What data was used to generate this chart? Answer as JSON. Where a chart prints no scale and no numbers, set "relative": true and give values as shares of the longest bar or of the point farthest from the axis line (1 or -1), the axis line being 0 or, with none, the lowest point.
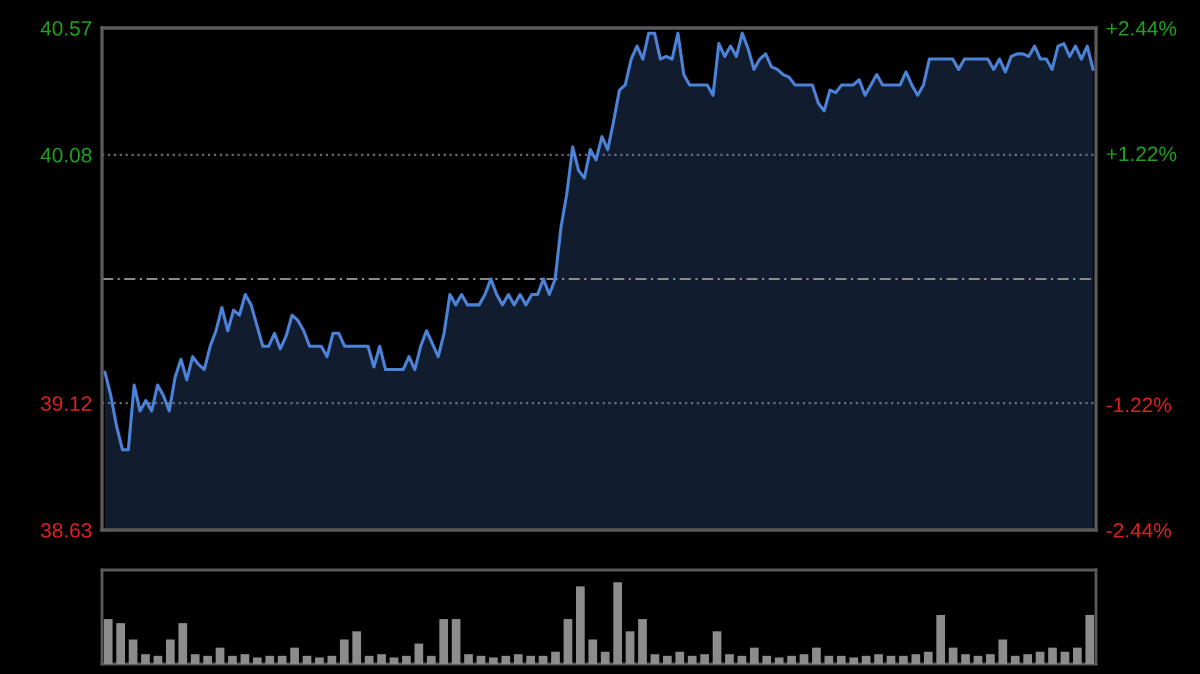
{
  "chart_data": [
    {
      "type": "area",
      "categories": [
        null,
        null,
        null,
        null,
        null,
        null,
        null,
        null,
        null,
        null,
        null,
        null,
        null,
        null,
        null,
        null,
        null,
        null,
        null,
        null,
        null,
        null,
        null,
        null,
        null,
        null,
        null,
        null,
        null,
        null,
        null,
        null,
        null,
        null,
        null,
        null,
        null,
        null,
        null,
        null,
        null,
        null,
        null,
        null,
        null,
        null,
        null,
        null,
        null,
        null,
        null,
        null,
        null,
        null,
        null,
        null,
        null,
        null,
        null,
        null,
        null,
        null,
        null,
        null,
        null,
        null,
        null,
        null,
        null,
        null,
        null,
        null,
        null,
        null,
        null,
        null,
        null,
        null,
        null,
        null,
        null,
        null,
        null,
        null,
        null,
        null,
        null,
        null,
        null,
        null,
        null,
        null,
        null,
        null,
        null,
        null,
        null,
        null,
        null,
        null,
        null,
        null,
        null,
        null,
        null,
        null,
        null,
        null,
        null,
        null,
        null,
        null,
        null,
        null,
        null,
        null,
        null,
        null,
        null,
        null,
        null,
        null,
        null,
        null,
        null,
        null,
        null,
        null,
        null,
        null,
        null,
        null,
        null,
        null,
        null,
        null,
        null,
        null,
        null,
        null,
        null,
        null,
        null,
        null,
        null,
        null,
        null,
        null,
        null,
        null,
        null,
        null,
        null,
        null,
        null,
        null,
        null,
        null,
        null,
        null,
        null,
        null,
        null,
        null,
        null,
        null,
        null,
        null,
        null,
        null
      ],
      "series": [
        {
          "color": "#4c82d8",
          "values": [
            39.24,
            39.15,
            39.03,
            38.94,
            38.94,
            39.19,
            39.09,
            39.13,
            39.09,
            39.19,
            39.15,
            39.09,
            39.22,
            39.29,
            39.21,
            39.3,
            39.27,
            39.25,
            39.34,
            39.4,
            39.49,
            39.4,
            39.48,
            39.46,
            39.54,
            39.5,
            39.42,
            39.34,
            39.34,
            39.39,
            39.33,
            39.38,
            39.46,
            39.44,
            39.4,
            39.34,
            39.34,
            39.34,
            39.3,
            39.39,
            39.39,
            39.34,
            39.34,
            39.34,
            39.34,
            39.34,
            39.26,
            39.34,
            39.25,
            39.25,
            39.25,
            39.25,
            39.3,
            39.25,
            39.34,
            39.4,
            39.35,
            39.3,
            39.39,
            39.54,
            39.5,
            39.54,
            39.5,
            39.5,
            39.5,
            39.54,
            39.6,
            39.54,
            39.5,
            39.54,
            39.5,
            39.54,
            39.5,
            39.54,
            39.54,
            39.6,
            39.54,
            39.6,
            39.8,
            39.93,
            40.11,
            40.02,
            39.99,
            40.1,
            40.06,
            40.15,
            40.1,
            40.21,
            40.33,
            40.35,
            40.45,
            40.5,
            40.45,
            40.55,
            40.55,
            40.45,
            40.46,
            40.45,
            40.55,
            40.39,
            40.35,
            40.35,
            40.35,
            40.35,
            40.31,
            40.51,
            40.46,
            40.5,
            40.46,
            40.55,
            40.49,
            40.41,
            40.45,
            40.47,
            40.42,
            40.41,
            40.39,
            40.38,
            40.35,
            40.35,
            40.35,
            40.35,
            40.28,
            40.25,
            40.33,
            40.32,
            40.35,
            40.35,
            40.35,
            40.37,
            40.31,
            40.35,
            40.39,
            40.35,
            40.35,
            40.35,
            40.35,
            40.4,
            40.35,
            40.31,
            40.35,
            40.45,
            40.45,
            40.45,
            40.45,
            40.45,
            40.41,
            40.45,
            40.45,
            40.45,
            40.45,
            40.45,
            40.41,
            40.45,
            40.4,
            40.46,
            40.47,
            40.47,
            40.46,
            40.5,
            40.45,
            40.45,
            40.41,
            40.5,
            40.51,
            40.46,
            40.5,
            40.45,
            40.5,
            40.41
          ]
        }
      ],
      "ylim": [
        38.63,
        40.57
      ],
      "yticks": [
        40.57,
        40.08,
        39.12,
        38.63
      ],
      "y2lim": [
        -2.44,
        2.44
      ],
      "y2ticks": [
        {
          "value": 2.44,
          "label": "+2.44%"
        },
        {
          "value": 1.22,
          "label": "+1.22%"
        },
        {
          "value": -1.22,
          "label": "-1.22%"
        },
        {
          "value": -2.44,
          "label": "-2.44%"
        }
      ],
      "ref_lines": [
        {
          "axis": "y",
          "value": 39.6,
          "line_style": "dashed",
          "color": "#8a8a8a"
        }
      ],
      "grid": "y",
      "tick_labels": "y"
    },
    {
      "type": "bar",
      "categories": [
        null,
        null,
        null,
        null,
        null,
        null,
        null,
        null,
        null,
        null,
        null,
        null,
        null,
        null,
        null,
        null,
        null,
        null,
        null,
        null,
        null,
        null,
        null,
        null,
        null,
        null,
        null,
        null,
        null,
        null,
        null,
        null,
        null,
        null,
        null,
        null,
        null,
        null,
        null,
        null,
        null,
        null,
        null,
        null,
        null,
        null,
        null,
        null,
        null,
        null,
        null,
        null,
        null,
        null,
        null,
        null,
        null,
        null,
        null,
        null,
        null,
        null,
        null,
        null,
        null,
        null,
        null,
        null,
        null,
        null,
        null,
        null,
        null,
        null,
        null,
        null,
        null,
        null,
        null,
        null
      ],
      "values": [
        0.55,
        0.5,
        0.3,
        0.12,
        0.1,
        0.3,
        0.5,
        0.12,
        0.1,
        0.2,
        0.1,
        0.12,
        0.08,
        0.1,
        0.1,
        0.2,
        0.1,
        0.08,
        0.1,
        0.3,
        0.4,
        0.1,
        0.12,
        0.08,
        0.1,
        0.25,
        0.1,
        0.55,
        0.55,
        0.12,
        0.1,
        0.08,
        0.1,
        0.12,
        0.1,
        0.1,
        0.15,
        0.55,
        0.95,
        0.3,
        0.15,
        1,
        0.4,
        0.55,
        0.12,
        0.1,
        0.15,
        0.1,
        0.12,
        0.4,
        0.12,
        0.1,
        0.2,
        0.1,
        0.08,
        0.1,
        0.12,
        0.2,
        0.1,
        0.1,
        0.08,
        0.1,
        0.12,
        0.1,
        0.1,
        0.12,
        0.15,
        0.6,
        0.2,
        0.12,
        0.1,
        0.12,
        0.3,
        0.1,
        0.12,
        0.15,
        0.2,
        0.15,
        0.2,
        0.6
      ],
      "color": "#8c8c8c",
      "relative": true
    }
  ]
}
